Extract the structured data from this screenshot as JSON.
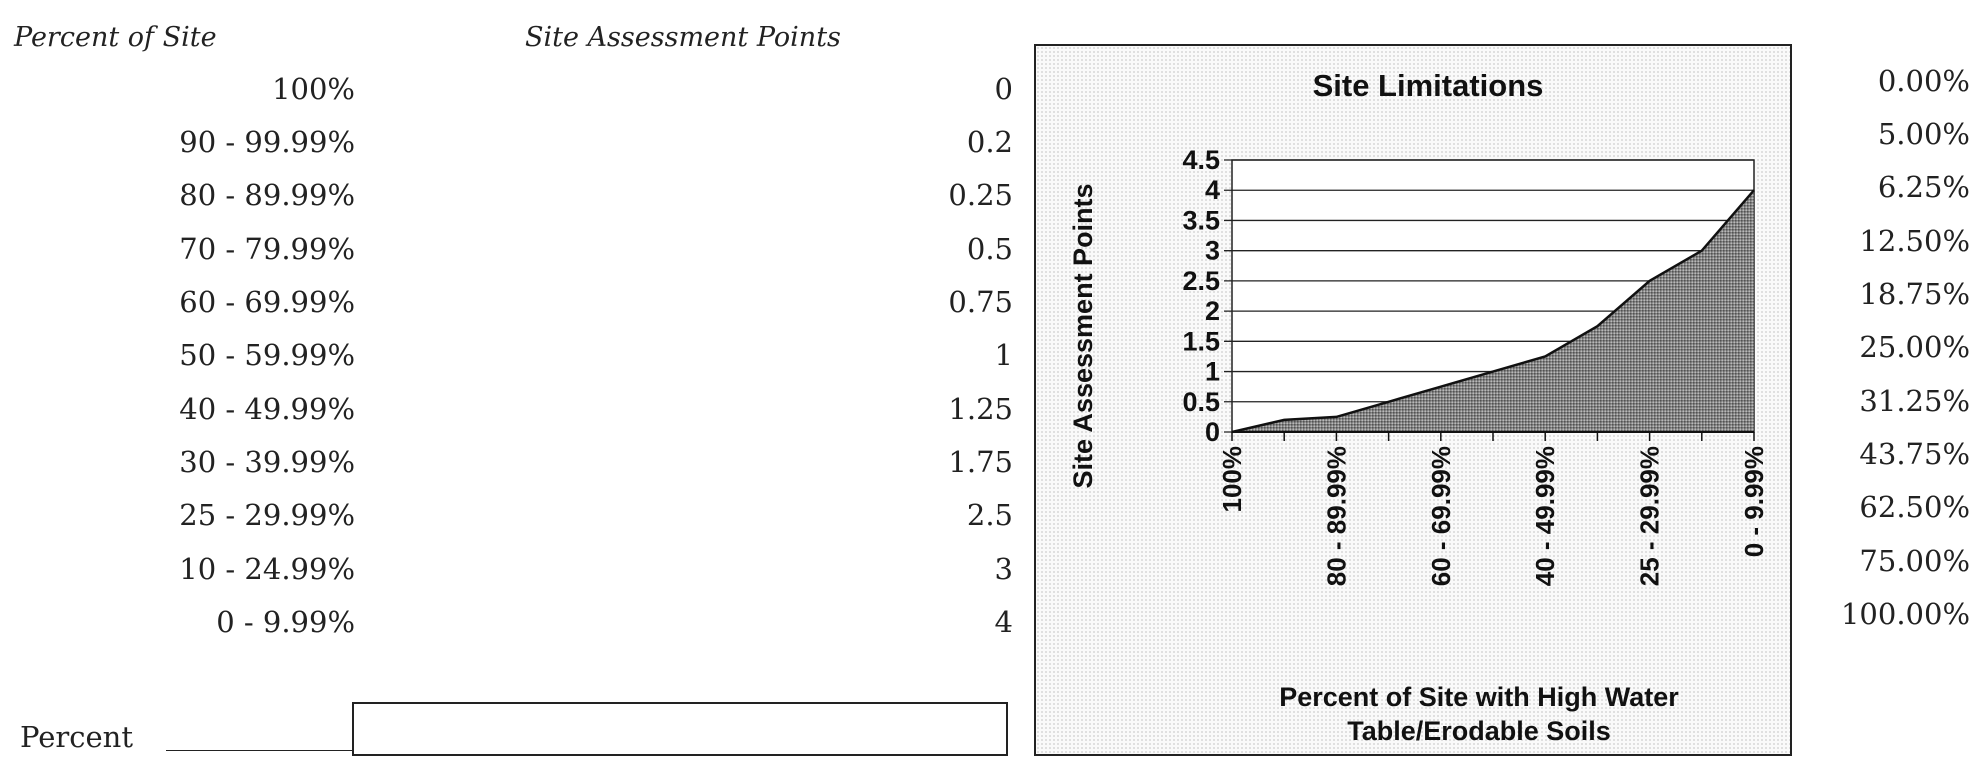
{
  "headers": {
    "percent_of_site": "Percent of Site",
    "site_assessment_points": "Site Assessment Points"
  },
  "table": {
    "percent_ranges": [
      "100%",
      "90 - 99.99%",
      "80 - 89.99%",
      "70 - 79.99%",
      "60 - 69.99%",
      "50 - 59.99%",
      "40 - 49.99%",
      "30 - 39.99%",
      "25 - 29.99%",
      "10 - 24.99%",
      "0 - 9.99%"
    ],
    "points": [
      "0",
      "0.2",
      "0.25",
      "0.5",
      "0.75",
      "1",
      "1.25",
      "1.75",
      "2.5",
      "3",
      "4"
    ],
    "right_percents": [
      "0.00%",
      "5.00%",
      "6.25%",
      "12.50%",
      "18.75%",
      "25.00%",
      "31.25%",
      "43.75%",
      "62.50%",
      "75.00%",
      "100.00%"
    ]
  },
  "input": {
    "label": "Percent",
    "value": ""
  },
  "chart_data": {
    "type": "area",
    "title": "Site Limitations",
    "xlabel": "Percent of Site with High Water Table/Erodable Soils",
    "xlabel_lines": [
      "Percent of Site with High Water",
      "Table/Erodable Soils"
    ],
    "ylabel": "Site Assessment Points",
    "categories": [
      "100%",
      "90 - 99.99%",
      "80 - 89.99%",
      "70 - 79.99%",
      "60 - 69.99%",
      "50 - 59.99%",
      "40 - 49.99%",
      "30 - 39.99%",
      "25 - 29.99%",
      "10 - 24.99%",
      "0 - 9.99%"
    ],
    "x_tick_labels": [
      "100%",
      "80 - 89.99%",
      "60 - 69.99%",
      "40 - 49.99%",
      "25 - 29.99%",
      "0 - 9.99%"
    ],
    "values": [
      0,
      0.2,
      0.25,
      0.5,
      0.75,
      1,
      1.25,
      1.75,
      2.5,
      3,
      4
    ],
    "y_ticks": [
      "0",
      "0.5",
      "1",
      "1.5",
      "2",
      "2.5",
      "3",
      "3.5",
      "4",
      "4.5"
    ],
    "ylim": [
      0,
      4.5
    ],
    "grid": true,
    "legend": "none"
  }
}
